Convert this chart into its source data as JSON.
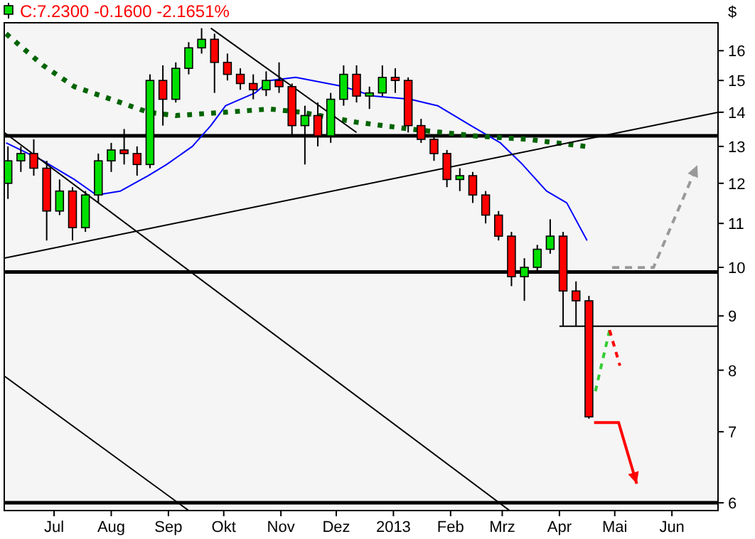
{
  "chart_data": {
    "type": "candlestick",
    "title": "C:7.2300 -0.1600 -2.1651%",
    "ylabel": "$",
    "x": [
      "2012-06-06",
      "2012-06-13",
      "2012-06-20",
      "2012-06-27",
      "2012-07-04",
      "2012-07-11",
      "2012-07-18",
      "2012-07-25",
      "2012-08-01",
      "2012-08-08",
      "2012-08-15",
      "2012-08-22",
      "2012-08-29",
      "2012-09-05",
      "2012-09-12",
      "2012-09-19",
      "2012-09-26",
      "2012-10-03",
      "2012-10-10",
      "2012-10-17",
      "2012-10-24",
      "2012-10-31",
      "2012-11-07",
      "2012-11-14",
      "2012-11-21",
      "2012-11-28",
      "2012-12-05",
      "2012-12-12",
      "2012-12-19",
      "2012-12-26",
      "2013-01-02",
      "2013-01-09",
      "2013-01-16",
      "2013-01-23",
      "2013-01-30",
      "2013-02-06",
      "2013-02-13",
      "2013-02-20",
      "2013-02-27",
      "2013-03-06",
      "2013-03-13",
      "2013-03-20",
      "2013-03-27",
      "2013-04-03",
      "2013-04-10",
      "2013-04-17"
    ],
    "ohlc": [
      [
        12.0,
        13.0,
        11.6,
        12.6
      ],
      [
        12.6,
        13.0,
        12.3,
        12.8
      ],
      [
        12.8,
        13.2,
        12.2,
        12.4
      ],
      [
        12.4,
        12.6,
        10.6,
        11.3
      ],
      [
        11.3,
        12.1,
        11.2,
        11.8
      ],
      [
        11.8,
        11.9,
        10.6,
        10.9
      ],
      [
        10.9,
        11.8,
        10.8,
        11.7
      ],
      [
        11.7,
        12.8,
        11.5,
        12.6
      ],
      [
        12.6,
        13.1,
        12.3,
        12.9
      ],
      [
        12.9,
        13.5,
        12.5,
        12.8
      ],
      [
        12.8,
        13.0,
        12.2,
        12.5
      ],
      [
        12.5,
        15.2,
        12.4,
        15.0
      ],
      [
        15.0,
        15.5,
        13.6,
        14.4
      ],
      [
        14.4,
        15.6,
        14.3,
        15.4
      ],
      [
        15.4,
        16.3,
        15.2,
        16.1
      ],
      [
        16.1,
        16.8,
        15.9,
        16.4
      ],
      [
        16.4,
        16.6,
        14.6,
        15.6
      ],
      [
        15.6,
        15.9,
        15.0,
        15.2
      ],
      [
        15.2,
        15.4,
        14.7,
        14.9
      ],
      [
        14.9,
        15.2,
        14.4,
        14.7
      ],
      [
        14.7,
        15.3,
        14.5,
        15.0
      ],
      [
        15.0,
        15.6,
        14.6,
        14.8
      ],
      [
        14.8,
        14.9,
        13.3,
        13.6
      ],
      [
        13.6,
        14.2,
        12.5,
        13.9
      ],
      [
        13.9,
        14.3,
        13.0,
        13.3
      ],
      [
        13.3,
        14.6,
        13.1,
        14.4
      ],
      [
        14.4,
        15.5,
        14.2,
        15.2
      ],
      [
        15.2,
        15.5,
        14.3,
        14.5
      ],
      [
        14.5,
        14.8,
        14.1,
        14.6
      ],
      [
        14.6,
        15.5,
        14.5,
        15.1
      ],
      [
        15.1,
        15.4,
        14.6,
        15.0
      ],
      [
        15.0,
        15.1,
        13.4,
        13.6
      ],
      [
        13.6,
        13.8,
        13.1,
        13.2
      ],
      [
        13.2,
        13.3,
        12.6,
        12.8
      ],
      [
        12.8,
        12.9,
        11.9,
        12.1
      ],
      [
        12.1,
        12.4,
        11.8,
        12.2
      ],
      [
        12.2,
        12.3,
        11.5,
        11.7
      ],
      [
        11.7,
        11.8,
        11.0,
        11.2
      ],
      [
        11.2,
        11.3,
        10.6,
        10.7
      ],
      [
        10.7,
        10.8,
        9.6,
        9.8
      ],
      [
        9.8,
        10.2,
        9.3,
        10.0
      ],
      [
        10.0,
        10.5,
        9.9,
        10.4
      ],
      [
        10.4,
        11.1,
        10.3,
        10.7
      ],
      [
        10.7,
        10.8,
        8.8,
        9.5
      ],
      [
        9.5,
        9.7,
        8.8,
        9.3
      ],
      [
        9.3,
        9.4,
        7.2,
        7.23
      ]
    ],
    "series": [
      {
        "type": "line",
        "color": "#0000ff",
        "x": [
          "2012-06-05",
          "2012-06-25",
          "2012-07-12",
          "2012-07-24",
          "2012-08-06",
          "2012-08-21",
          "2012-08-31",
          "2012-09-14",
          "2012-09-24",
          "2012-10-02",
          "2012-10-18",
          "2012-10-26",
          "2012-11-09",
          "2012-12-05",
          "2012-12-21",
          "2013-01-10",
          "2013-01-25",
          "2013-02-12",
          "2013-02-28",
          "2013-03-12",
          "2013-03-25",
          "2013-04-05",
          "2013-04-16"
        ],
        "values": [
          13.1,
          12.6,
          12.1,
          11.7,
          11.8,
          12.2,
          12.5,
          13.0,
          13.6,
          14.2,
          14.6,
          15.0,
          15.1,
          14.8,
          14.5,
          14.4,
          14.2,
          13.6,
          13.1,
          12.5,
          11.8,
          11.5,
          10.6
        ]
      },
      {
        "type": "line",
        "color": "#006400",
        "line_style": "dotted",
        "x": [
          "2012-06-05",
          "2012-06-25",
          "2012-07-12",
          "2012-08-06",
          "2012-08-21",
          "2012-09-05",
          "2012-10-02",
          "2012-10-26",
          "2012-11-12",
          "2012-12-12",
          "2013-01-10",
          "2013-02-14",
          "2013-03-15",
          "2013-04-15"
        ],
        "values": [
          16.6,
          15.5,
          14.8,
          14.3,
          14.0,
          13.9,
          14.0,
          14.1,
          14.0,
          13.7,
          13.5,
          13.3,
          13.2,
          13.0
        ]
      },
      {
        "type": "line",
        "color": "#000000",
        "x": [
          "2012-06-04",
          "2013-06-26"
        ],
        "values": [
          10.2,
          14.0
        ]
      },
      {
        "type": "line",
        "color": "#000000",
        "x": [
          "2012-06-04",
          "2013-03-05"
        ],
        "values": [
          13.4,
          5.9
        ]
      },
      {
        "type": "line",
        "color": "#000000",
        "x": [
          "2012-06-04",
          "2012-09-12"
        ],
        "values": [
          7.9,
          5.9
        ]
      },
      {
        "type": "line",
        "color": "#000000",
        "x": [
          "2012-09-24",
          "2012-12-12"
        ],
        "values": [
          16.8,
          13.4
        ]
      },
      {
        "type": "line",
        "color": "#000000",
        "x": [
          "2013-04-01",
          "2013-06-26"
        ],
        "values": [
          8.8,
          8.8
        ]
      }
    ],
    "ref_lines": [
      {
        "axis": "y",
        "value": 13.3,
        "color": "#000000"
      },
      {
        "axis": "y",
        "value": 9.9,
        "color": "#000000"
      },
      {
        "axis": "y",
        "value": 6.0,
        "color": "#000000"
      }
    ],
    "xlim": [
      "2012-06-04",
      "2013-06-26"
    ],
    "xticks": [
      {
        "value": "2012-07-01",
        "label": "Jul"
      },
      {
        "value": "2012-08-01",
        "label": "Aug"
      },
      {
        "value": "2012-09-01",
        "label": "Sep"
      },
      {
        "value": "2012-10-01",
        "label": "Okt"
      },
      {
        "value": "2012-11-01",
        "label": "Nov"
      },
      {
        "value": "2012-12-01",
        "label": "Dez"
      },
      {
        "value": "2013-01-01",
        "label": "2013"
      },
      {
        "value": "2013-02-01",
        "label": "Feb"
      },
      {
        "value": "2013-03-01",
        "label": "Mrz"
      },
      {
        "value": "2013-04-01",
        "label": "Apr"
      },
      {
        "value": "2013-05-01",
        "label": "Mai"
      },
      {
        "value": "2013-06-01",
        "label": "Jun"
      }
    ],
    "ylim": [
      5.9,
      17
    ],
    "yticks": [
      6,
      7,
      8,
      9,
      10,
      11,
      12,
      13,
      14,
      15,
      16
    ],
    "log": true
  }
}
